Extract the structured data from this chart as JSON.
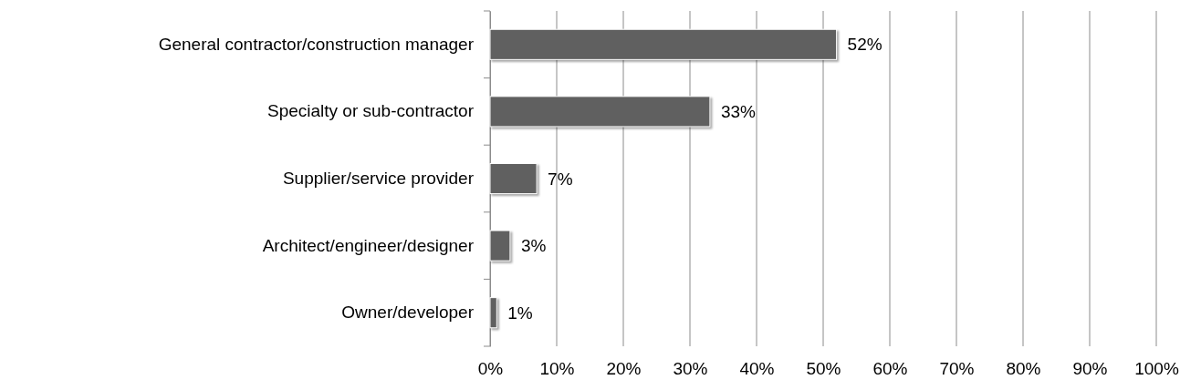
{
  "chart_data": {
    "type": "bar",
    "orientation": "horizontal",
    "categories": [
      "General contractor/construction manager",
      "Specialty or sub-contractor",
      "Supplier/service provider",
      "Architect/engineer/designer",
      "Owner/developer"
    ],
    "values": [
      52,
      33,
      7,
      3,
      1
    ],
    "value_labels": [
      "52%",
      "33%",
      "7%",
      "3%",
      "1%"
    ],
    "color": "#606060",
    "xlim": [
      0,
      100
    ],
    "xticks": [
      {
        "value": 0,
        "label": "0%"
      },
      {
        "value": 10,
        "label": "10%"
      },
      {
        "value": 20,
        "label": "20%"
      },
      {
        "value": 30,
        "label": "30%"
      },
      {
        "value": 40,
        "label": "40%"
      },
      {
        "value": 50,
        "label": "50%"
      },
      {
        "value": 60,
        "label": "60%"
      },
      {
        "value": 70,
        "label": "70%"
      },
      {
        "value": 80,
        "label": "80%"
      },
      {
        "value": 90,
        "label": "90%"
      },
      {
        "value": 100,
        "label": "100%"
      }
    ],
    "grid": "x"
  }
}
